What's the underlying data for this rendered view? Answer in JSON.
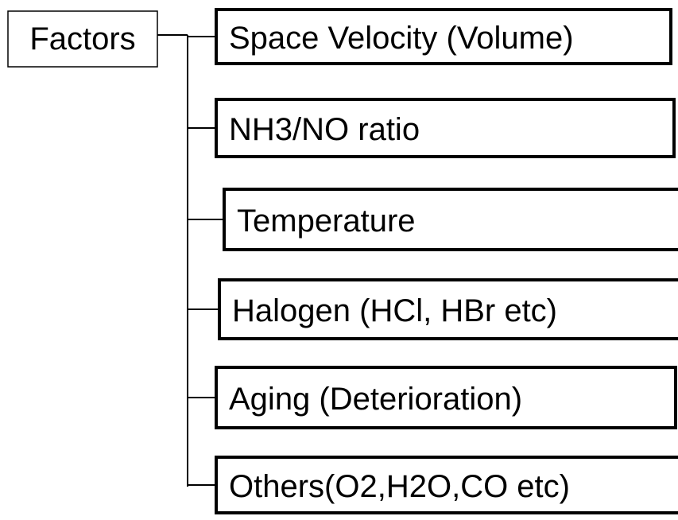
{
  "root": {
    "label": "Factors"
  },
  "children": [
    {
      "label": "Space Velocity (Volume)"
    },
    {
      "label": "NH3/NO ratio"
    },
    {
      "label": "Temperature"
    },
    {
      "label": "Halogen (HCl, HBr etc)"
    },
    {
      "label": "Aging (Deterioration)"
    },
    {
      "label": "Others(O2,H2O,CO etc)"
    }
  ]
}
